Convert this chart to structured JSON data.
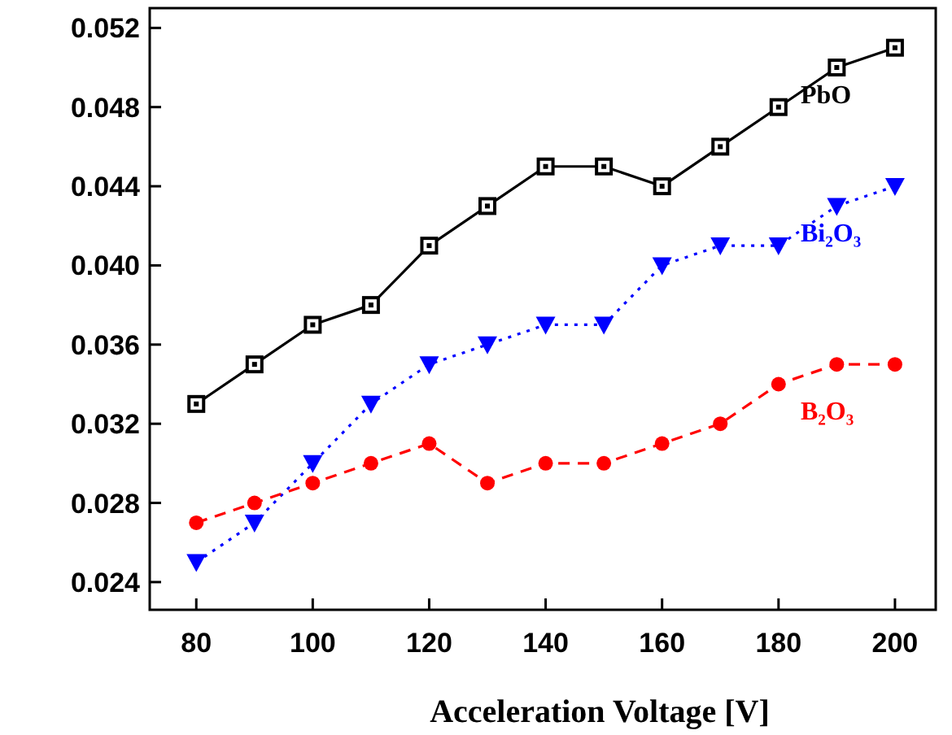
{
  "chart_data": {
    "type": "line",
    "xlabel": "Acceleration Voltage [V]",
    "x": [
      80,
      90,
      100,
      110,
      120,
      130,
      140,
      150,
      160,
      170,
      180,
      190,
      200
    ],
    "series": [
      {
        "name": "PbO",
        "color": "#000000",
        "marker": "square",
        "line_style": "solid",
        "values": [
          0.033,
          0.035,
          0.037,
          0.038,
          0.041,
          0.043,
          0.045,
          0.045,
          0.044,
          0.046,
          0.048,
          0.05,
          0.051
        ]
      },
      {
        "name": "Bi₂O₃",
        "color": "#0000ff",
        "marker": "triangle",
        "line_style": "dotted",
        "values": [
          0.025,
          0.027,
          0.03,
          0.033,
          0.035,
          0.036,
          0.037,
          0.037,
          0.04,
          0.041,
          0.041,
          0.043,
          0.044
        ]
      },
      {
        "name": "B₂O₃",
        "color": "#ff0000",
        "marker": "circle",
        "line_style": "dashed",
        "values": [
          0.027,
          0.028,
          0.029,
          0.03,
          0.031,
          0.029,
          0.03,
          0.03,
          0.031,
          0.032,
          0.034,
          0.035,
          0.035
        ]
      }
    ],
    "xlim": [
      72,
      207
    ],
    "ylim": [
      0.0226,
      0.053
    ],
    "xticks": [
      80,
      100,
      120,
      140,
      160,
      180,
      200
    ],
    "yticks": [
      0.024,
      0.028,
      0.032,
      {
        "value": 0.036,
        "label": "0.036"
      },
      {
        "value": 0.04,
        "label": "0.040"
      },
      0.044,
      0.048,
      0.052
    ],
    "grid": false
  }
}
